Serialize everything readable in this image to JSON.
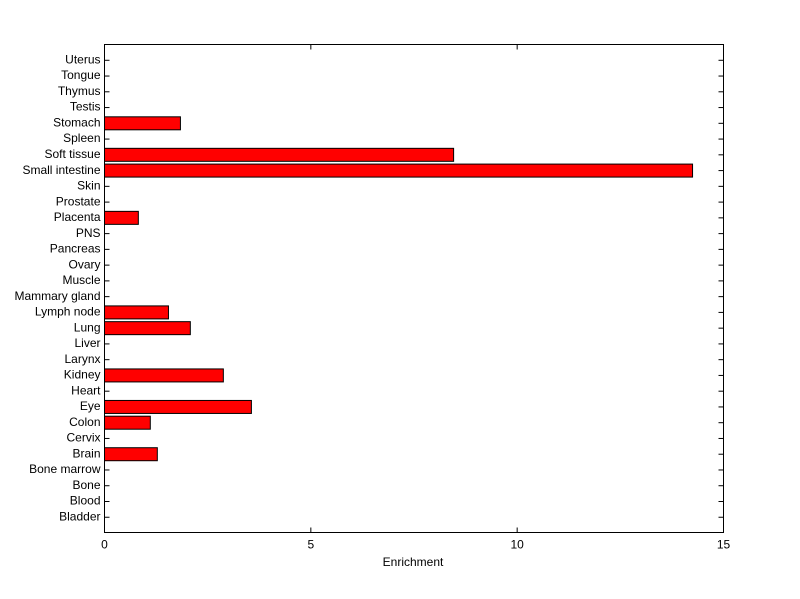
{
  "chart_data": {
    "type": "barh",
    "xlabel": "Enrichment",
    "categories": [
      "Bladder",
      "Blood",
      "Bone",
      "Bone marrow",
      "Brain",
      "Cervix",
      "Colon",
      "Eye",
      "Heart",
      "Kidney",
      "Larynx",
      "Liver",
      "Lung",
      "Lymph node",
      "Mammary gland",
      "Muscle",
      "Ovary",
      "Pancreas",
      "PNS",
      "Placenta",
      "Prostate",
      "Skin",
      "Small intestine",
      "Soft tissue",
      "Spleen",
      "Stomach",
      "Testis",
      "Thymus",
      "Tongue",
      "Uterus"
    ],
    "values": [
      0,
      0,
      0,
      0,
      1.28,
      0,
      1.11,
      3.56,
      0,
      2.88,
      0,
      0,
      2.08,
      1.55,
      0,
      0,
      0,
      0,
      0,
      0.82,
      0,
      0,
      14.25,
      8.46,
      0,
      1.84,
      0,
      0,
      0,
      0
    ],
    "color": "#ff0000",
    "xlim": [
      0,
      15
    ],
    "xticks": [
      0,
      5,
      10,
      15
    ]
  }
}
